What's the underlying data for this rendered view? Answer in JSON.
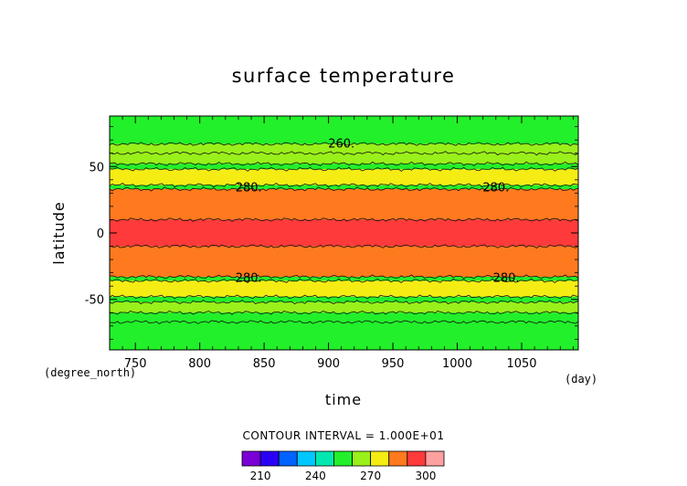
{
  "chart_data": {
    "type": "heatmap",
    "title": "surface temperature",
    "xlabel": "time",
    "ylabel": "latitude",
    "x_unit": "(day)",
    "y_unit": "(degree_north)",
    "xlim": [
      730,
      1094
    ],
    "ylim": [
      -88,
      88
    ],
    "x_ticks": [
      750,
      800,
      850,
      900,
      950,
      1000,
      1050
    ],
    "y_ticks": [
      -50,
      0,
      50
    ],
    "contour_interval_text": "CONTOUR INTERVAL = 1.000E+01",
    "contour_levels": [
      250,
      260,
      270,
      280,
      290
    ],
    "contour_labels": [
      {
        "text": "260.",
        "x": 910,
        "y": 67
      },
      {
        "text": "280.",
        "x": 838,
        "y": 34
      },
      {
        "text": "280.",
        "x": 1030,
        "y": 34
      },
      {
        "text": "280.",
        "x": 838,
        "y": -34
      },
      {
        "text": "280.",
        "x": 1038,
        "y": -34
      }
    ],
    "bands": [
      {
        "value": 250,
        "lat_min": 60,
        "lat_max": 88
      },
      {
        "value": 260,
        "lat_min": 52,
        "lat_max": 67
      },
      {
        "value": 270,
        "lat_min": 36,
        "lat_max": 48
      },
      {
        "value": 280,
        "lat_min": 10,
        "lat_max": 33
      },
      {
        "value": 290,
        "lat_min": -10,
        "lat_max": 10
      },
      {
        "value": 280,
        "lat_min": -33,
        "lat_max": -10
      },
      {
        "value": 270,
        "lat_min": -48,
        "lat_max": -36
      },
      {
        "value": 260,
        "lat_min": -67,
        "lat_max": -52
      },
      {
        "value": 250,
        "lat_min": -88,
        "lat_max": -60
      }
    ],
    "colorbar": {
      "levels": [
        200,
        210,
        220,
        230,
        240,
        250,
        260,
        270,
        280,
        290,
        300,
        310
      ],
      "tick_values": [
        210,
        240,
        270,
        300
      ],
      "colors": [
        "#7a00d6",
        "#2a00f5",
        "#0062ff",
        "#00c8ff",
        "#00e8b0",
        "#22f02a",
        "#9af01a",
        "#f5ec14",
        "#ff7a1e",
        "#ff3a3a",
        "#ffa0a0"
      ]
    }
  }
}
